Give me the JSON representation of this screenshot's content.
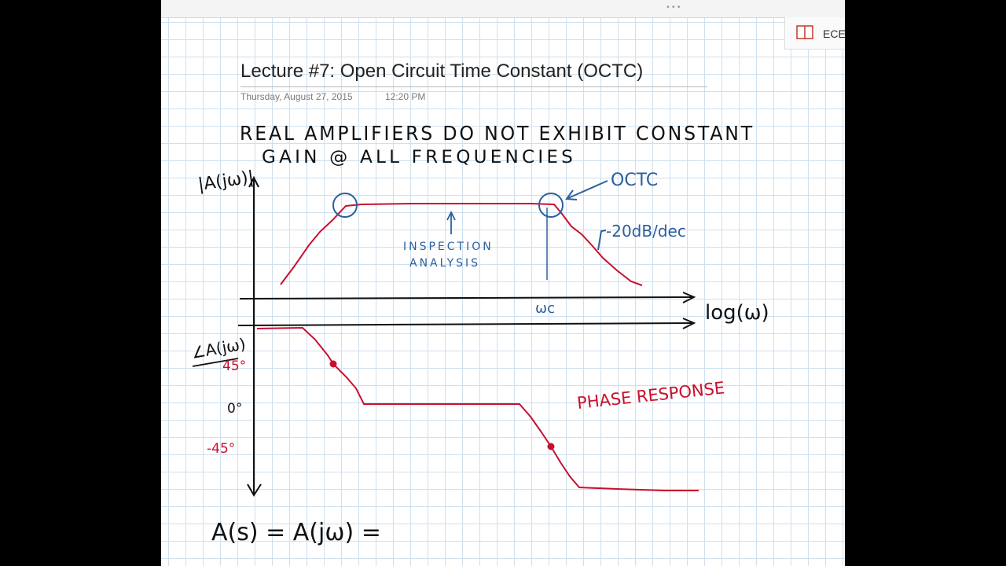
{
  "window": {
    "side_tab_label": "ECE"
  },
  "note": {
    "title": "Lecture #7: Open Circuit Time Constant (OCTC)",
    "date": "Thursday, August 27, 2015",
    "time": "12:20 PM"
  },
  "ink": {
    "line1": "REAL AMPLIFIERS DO NOT EXHIBIT CONSTANT",
    "line2": "GAIN @ ALL FREQUENCIES",
    "mag_axis_label": "|A(jω)|",
    "phase_axis_label": "∠A(jω)",
    "octc_label": "OCTC",
    "slope_label": "-20dB/dec",
    "inspection_label_1": "INSPECTION",
    "inspection_label_2": "ANALYSIS",
    "omega_c_label": "ωc",
    "x_axis_label": "log(ω)",
    "phase_ticks": [
      "45°",
      "0°",
      "-45°"
    ],
    "phase_response_label": "PHASE RESPONSE",
    "bottom_equation": "A(s) = A(jω) ="
  },
  "colors": {
    "black_ink": "#111111",
    "red_ink": "#c8102e",
    "blue_ink": "#2c5f9e",
    "title_text": "#222222",
    "meta_text": "#7a7a7a"
  }
}
